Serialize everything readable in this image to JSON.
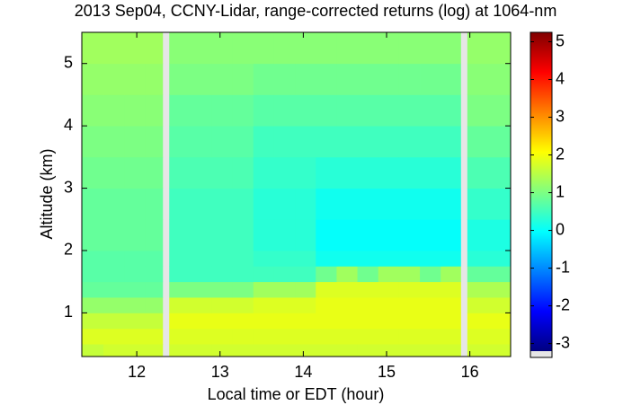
{
  "chart_data": {
    "type": "heatmap",
    "title": "2013 Sep04, CCNY-Lidar, range-corrected returns (log) at 1064-nm",
    "x_label": "Local time or EDT (hour)",
    "y_label": "Altitude (km)",
    "colormap": "jet",
    "x_edges": [
      11.34,
      11.6,
      11.85,
      12.1,
      12.31,
      12.39,
      12.65,
      12.9,
      13.15,
      13.4,
      13.65,
      13.9,
      14.15,
      14.4,
      14.65,
      14.9,
      15.15,
      15.4,
      15.65,
      15.89,
      15.97,
      16.23,
      16.49
    ],
    "y_edges": [
      0.3,
      0.5,
      0.75,
      1.0,
      1.25,
      1.5,
      1.75,
      2.0,
      2.5,
      3.0,
      3.5,
      4.0,
      4.5,
      5.0,
      5.5
    ],
    "values": [
      [
        1.6,
        1.7,
        1.7,
        1.7,
        null,
        1.7,
        1.7,
        1.7,
        1.7,
        1.7,
        1.7,
        1.7,
        1.7,
        1.7,
        1.7,
        1.7,
        1.7,
        1.7,
        1.7,
        null,
        1.7,
        1.7
      ],
      [
        1.8,
        1.8,
        1.8,
        1.8,
        null,
        1.8,
        1.8,
        1.8,
        1.8,
        1.8,
        1.8,
        1.8,
        1.8,
        1.8,
        1.8,
        1.8,
        1.8,
        1.8,
        1.8,
        null,
        1.8,
        1.8
      ],
      [
        1.6,
        1.6,
        1.6,
        1.6,
        null,
        1.9,
        1.9,
        1.9,
        1.9,
        1.9,
        1.9,
        1.9,
        1.9,
        1.9,
        1.9,
        1.9,
        1.9,
        1.9,
        1.9,
        null,
        1.9,
        1.9
      ],
      [
        1.2,
        1.2,
        1.2,
        1.2,
        null,
        1.7,
        1.7,
        1.7,
        1.7,
        1.8,
        1.8,
        1.8,
        1.9,
        1.9,
        1.9,
        1.9,
        1.9,
        1.9,
        1.9,
        null,
        1.7,
        1.7
      ],
      [
        0.8,
        0.8,
        0.8,
        0.8,
        null,
        1.0,
        1.0,
        1.0,
        1.0,
        1.3,
        1.3,
        1.3,
        1.8,
        1.8,
        1.8,
        1.8,
        1.8,
        1.8,
        1.8,
        null,
        1.4,
        1.4
      ],
      [
        0.7,
        0.7,
        0.7,
        0.7,
        null,
        0.5,
        0.5,
        0.5,
        0.5,
        0.5,
        0.5,
        0.5,
        0.9,
        1.3,
        0.9,
        1.3,
        1.3,
        0.9,
        1.3,
        null,
        0.8,
        0.8
      ],
      [
        0.7,
        0.7,
        0.7,
        0.7,
        null,
        0.5,
        0.5,
        0.5,
        0.5,
        0.4,
        0.4,
        0.4,
        0.1,
        0.1,
        0.1,
        0.1,
        0.1,
        0.1,
        0.1,
        null,
        0.3,
        0.3
      ],
      [
        0.8,
        0.8,
        0.8,
        0.8,
        null,
        0.5,
        0.5,
        0.5,
        0.5,
        0.3,
        0.3,
        0.3,
        0.0,
        0.0,
        0.0,
        0.0,
        0.0,
        0.0,
        0.0,
        null,
        0.2,
        0.2
      ],
      [
        0.8,
        0.8,
        0.8,
        0.8,
        null,
        0.5,
        0.5,
        0.5,
        0.5,
        0.3,
        0.3,
        0.3,
        0.1,
        0.1,
        0.1,
        0.1,
        0.1,
        0.1,
        0.1,
        null,
        0.4,
        0.4
      ],
      [
        0.9,
        0.9,
        0.9,
        0.9,
        null,
        0.6,
        0.6,
        0.6,
        0.6,
        0.4,
        0.4,
        0.4,
        0.3,
        0.3,
        0.3,
        0.3,
        0.3,
        0.3,
        0.3,
        null,
        0.6,
        0.6
      ],
      [
        1.0,
        1.0,
        1.0,
        1.0,
        null,
        0.7,
        0.7,
        0.7,
        0.7,
        0.5,
        0.5,
        0.5,
        0.5,
        0.5,
        0.5,
        0.5,
        0.5,
        0.5,
        0.5,
        null,
        0.8,
        0.8
      ],
      [
        1.1,
        1.1,
        1.1,
        1.1,
        null,
        0.8,
        0.8,
        0.8,
        0.8,
        0.7,
        0.7,
        0.7,
        0.7,
        0.7,
        0.7,
        0.7,
        0.7,
        0.7,
        0.7,
        null,
        1.0,
        1.0
      ],
      [
        1.2,
        1.2,
        1.2,
        1.2,
        null,
        1.0,
        1.0,
        1.0,
        1.0,
        0.9,
        0.9,
        0.9,
        0.9,
        0.9,
        0.9,
        0.9,
        0.9,
        0.9,
        0.9,
        null,
        1.1,
        1.1
      ],
      [
        1.3,
        1.3,
        1.3,
        1.3,
        null,
        1.1,
        1.1,
        1.1,
        1.1,
        1.1,
        1.1,
        1.1,
        1.1,
        1.1,
        1.1,
        1.1,
        1.1,
        1.1,
        1.1,
        null,
        1.2,
        1.2
      ]
    ],
    "xlim": [
      11.34,
      16.49
    ],
    "xticks": [
      12,
      13,
      14,
      15,
      16
    ],
    "ylim": [
      0.3,
      5.5
    ],
    "yticks": [
      1,
      2,
      3,
      4,
      5
    ],
    "clim": [
      -3.2,
      5.25
    ],
    "cticks": [
      -3,
      -2,
      -1,
      0,
      1,
      2,
      3,
      4,
      5
    ]
  }
}
